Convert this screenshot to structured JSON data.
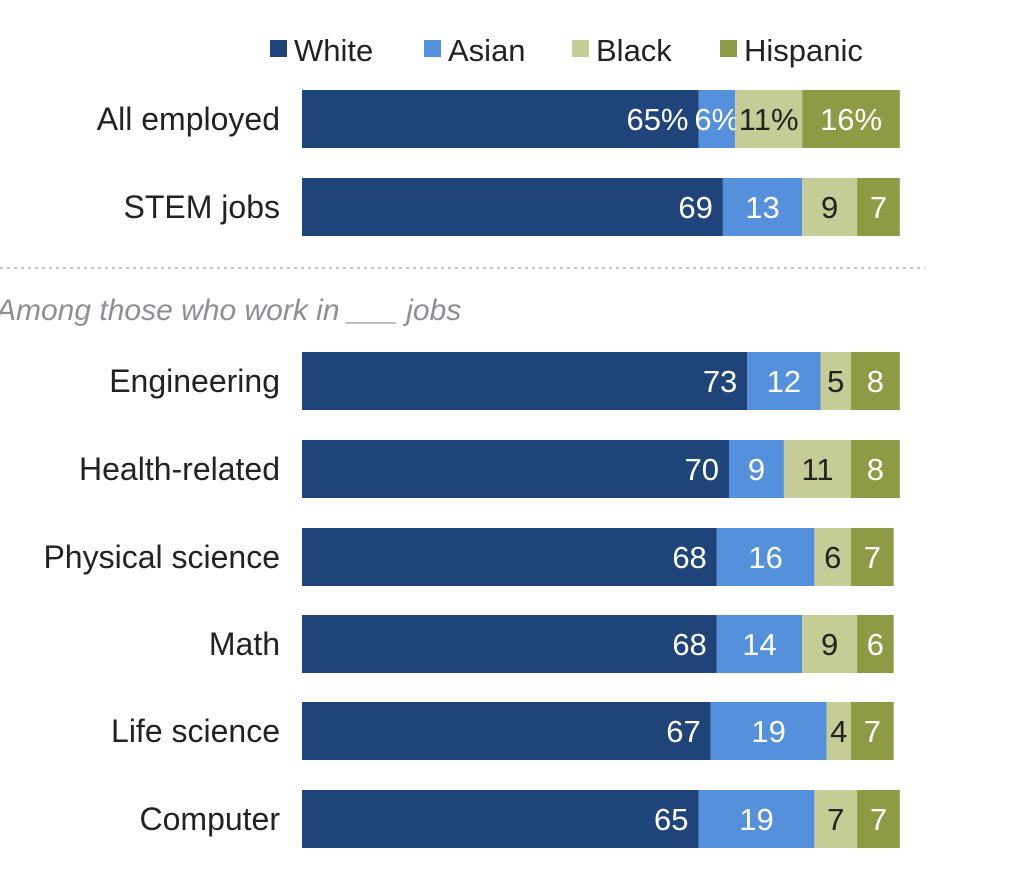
{
  "chart_data": {
    "type": "bar",
    "orientation": "horizontal",
    "stacked": true,
    "legend_position": "top",
    "grid": false,
    "section_label": "Among those who work in ___ jobs",
    "categories": [
      "All employed",
      "STEM jobs",
      "Engineering",
      "Health-related",
      "Physical science",
      "Math",
      "Life science",
      "Computer"
    ],
    "series": [
      {
        "name": "White",
        "color": "#1f4479",
        "label_color": "#ffffff",
        "values": [
          65,
          69,
          73,
          70,
          68,
          68,
          67,
          65
        ],
        "labels": [
          "65%",
          "69",
          "73",
          "70",
          "68",
          "68",
          "67",
          "65"
        ]
      },
      {
        "name": "Asian",
        "color": "#5590dc",
        "label_color": "#ffffff",
        "values": [
          6,
          13,
          12,
          9,
          16,
          14,
          19,
          19
        ],
        "labels": [
          "6%",
          "13",
          "12",
          "9",
          "16",
          "14",
          "19",
          "19"
        ]
      },
      {
        "name": "Black",
        "color": "#c6cc96",
        "label_color": "#222222",
        "values": [
          11,
          9,
          5,
          11,
          6,
          9,
          4,
          7
        ],
        "labels": [
          "11%",
          "9",
          "5",
          "11",
          "6",
          "9",
          "4",
          "7"
        ]
      },
      {
        "name": "Hispanic",
        "color": "#8f9a45",
        "label_color": "#ffffff",
        "values": [
          16,
          7,
          8,
          8,
          7,
          6,
          7,
          7
        ],
        "labels": [
          "16%",
          "7",
          "8",
          "8",
          "7",
          "6",
          "7",
          "7"
        ]
      }
    ]
  }
}
